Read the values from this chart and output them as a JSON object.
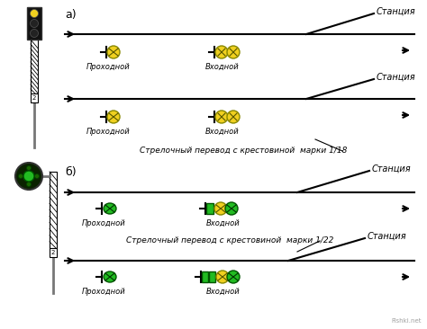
{
  "bg_color": "#ffffff",
  "yellow": "#f0d020",
  "green": "#22bb22",
  "dark_green": "#1a5c1a",
  "black": "#000000",
  "white": "#ffffff",
  "gray": "#555555",
  "track_lw": 1.5,
  "fig_w": 4.74,
  "fig_h": 3.66,
  "dpi": 100,
  "watermark": "Fishki.net",
  "label_a": "а)",
  "label_b": "б)",
  "text_prohodnoj": "Проходной",
  "text_vhodnoj": "Входной",
  "text_stancia": "Станция",
  "text_18": "Стрелочный перевод с крестовиной  марки 1/18",
  "text_22": "Стрелочный перевод с крестовиной  марки 1/22"
}
